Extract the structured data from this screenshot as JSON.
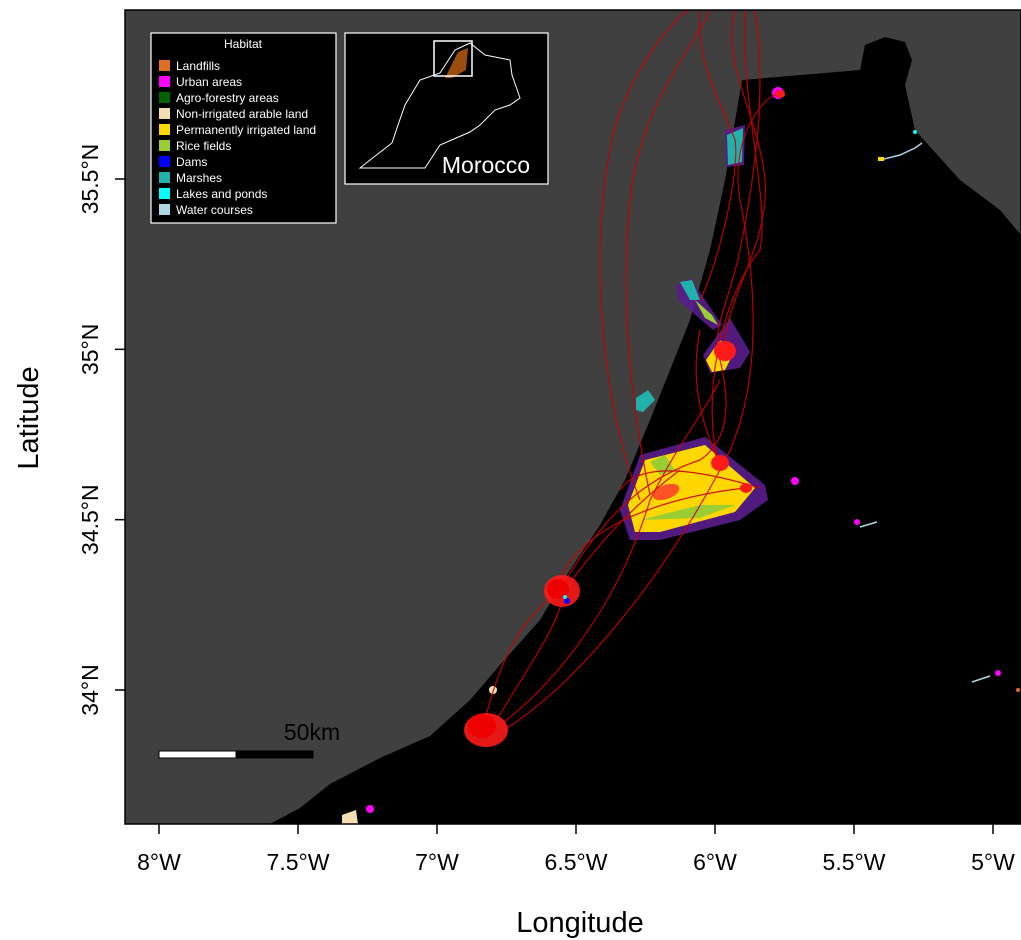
{
  "axes": {
    "xlabel": "Longitude",
    "ylabel": "Latitude",
    "x_ticks": [
      {
        "value": -8.0,
        "label": "8°W"
      },
      {
        "value": -7.5,
        "label": "7.5°W"
      },
      {
        "value": -7.0,
        "label": "7°W"
      },
      {
        "value": -6.5,
        "label": "6.5°W"
      },
      {
        "value": -6.0,
        "label": "6°W"
      },
      {
        "value": -5.5,
        "label": "5.5°W"
      },
      {
        "value": -5.0,
        "label": "5°W"
      }
    ],
    "y_ticks": [
      {
        "value": 34.0,
        "label": "34°N"
      },
      {
        "value": 34.5,
        "label": "34.5°N"
      },
      {
        "value": 35.0,
        "label": "35°N"
      },
      {
        "value": 35.5,
        "label": "35.5°N"
      }
    ],
    "xlim": [
      -8.12,
      -4.92
    ],
    "ylim": [
      33.61,
      35.98
    ]
  },
  "legend": {
    "title": "Habitat",
    "items": [
      {
        "label": "Landfills",
        "color": "#e07020"
      },
      {
        "label": "Urban areas",
        "color": "#ff00ff"
      },
      {
        "label": "Agro-forestry areas",
        "color": "#006400"
      },
      {
        "label": "Non-irrigated arable land",
        "color": "#f5deb3"
      },
      {
        "label": "Permanently irrigated land",
        "color": "#ffd700"
      },
      {
        "label": "Rice fields",
        "color": "#9acd32"
      },
      {
        "label": "Dams",
        "color": "#0000ff"
      },
      {
        "label": "Marshes",
        "color": "#20b2aa"
      },
      {
        "label": "Lakes and ponds",
        "color": "#00ffff"
      },
      {
        "label": "Water courses",
        "color": "#add8e6"
      }
    ]
  },
  "inset": {
    "label": "Morocco"
  },
  "scale_bar": {
    "label": "50km"
  },
  "colors": {
    "sea": "#404040",
    "land": "#000000",
    "track": "#cc0000",
    "hull": "#5a1d8c"
  },
  "home_range_clusters": [
    {
      "lon": -6.83,
      "lat": 33.88
    },
    {
      "lon": -6.55,
      "lat": 34.29
    },
    {
      "lon": -6.02,
      "lat": 34.67
    },
    {
      "lon": -6.0,
      "lat": 34.99
    },
    {
      "lon": -5.77,
      "lat": 35.75
    }
  ]
}
